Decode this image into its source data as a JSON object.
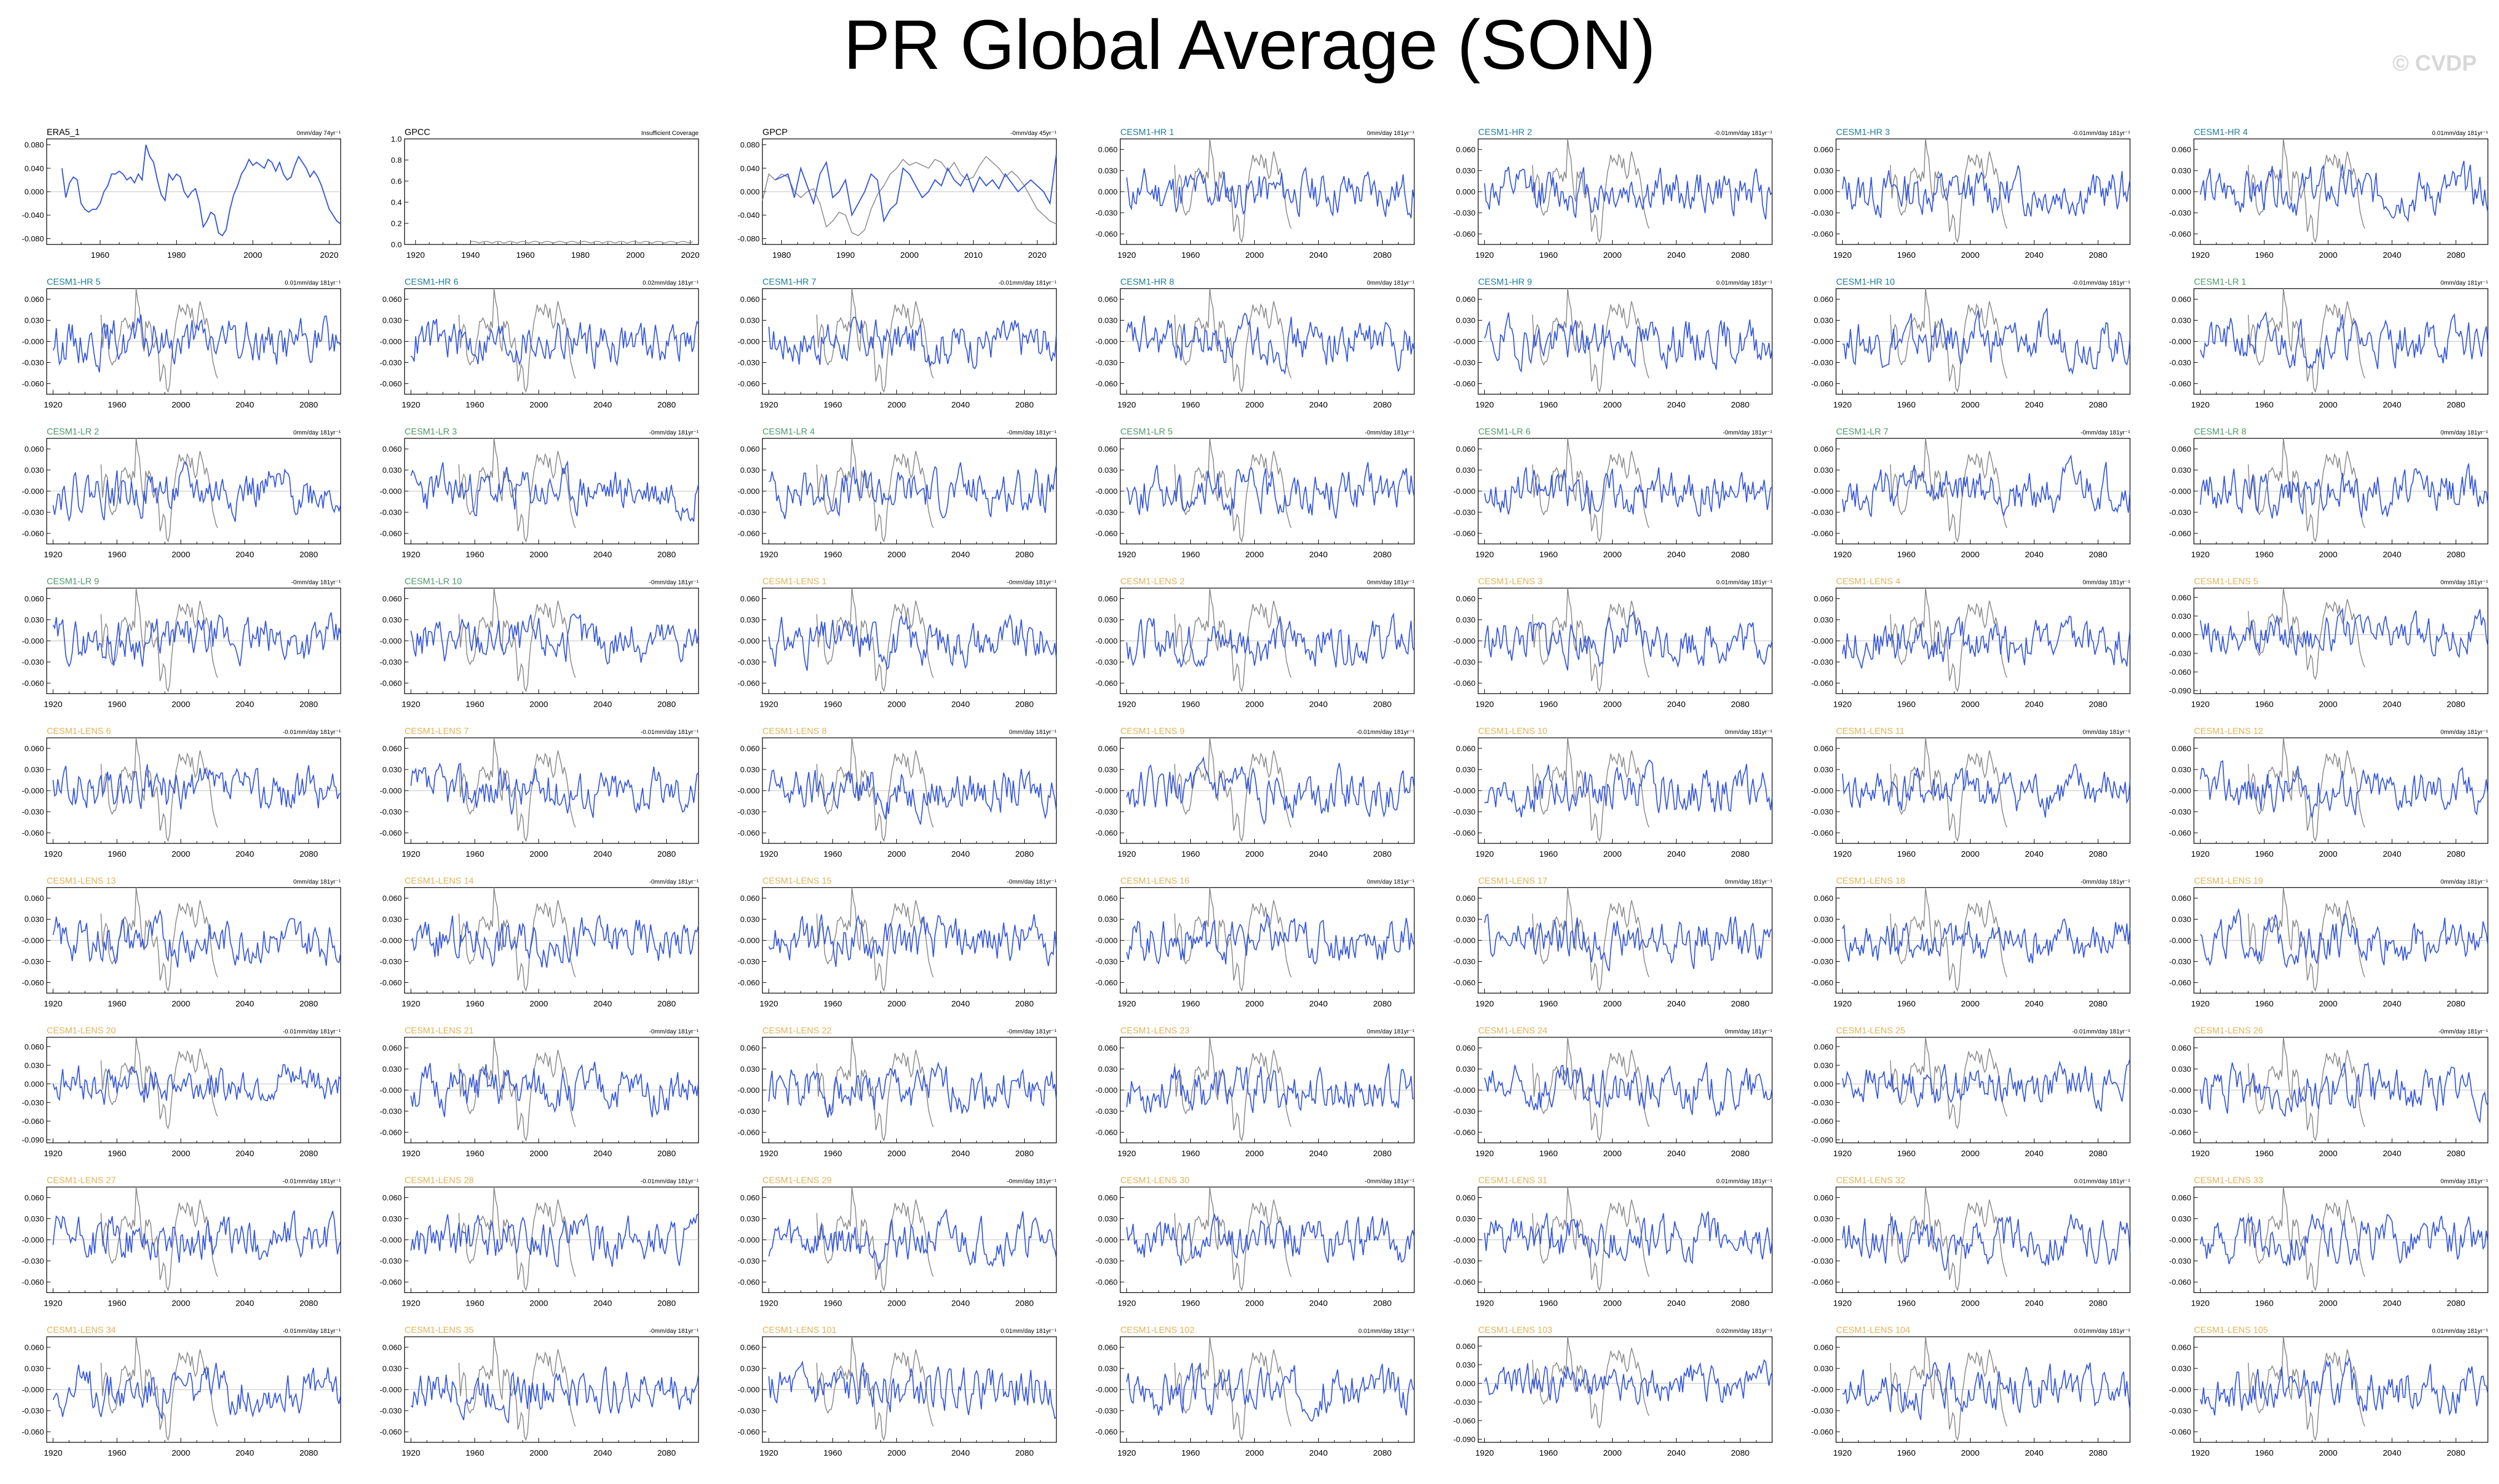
{
  "title": "PR Global Average (SON)",
  "copyright": "© CVDP",
  "colors": {
    "series_line": "#3355dd",
    "observation_overlay": "#8a8a8a",
    "zero_line": "#bdbdbd",
    "label_obs": "#000000",
    "label_cesm1_hr": "#1f7f9a",
    "label_cesm1_lr": "#4f9a6a",
    "label_cesm1_lens": "#e2b45a",
    "trend_text": "#000000"
  },
  "chart_data": [
    {
      "type": "line",
      "label": "ERA5_1",
      "label_group": "obs",
      "trend": "0mm/day 74yr⁻¹",
      "xlim": [
        1946,
        2023
      ],
      "ylim": [
        -0.09,
        0.09
      ],
      "yticks": [
        "0.080",
        "0.040",
        "0.000",
        "-0.040",
        "-0.080"
      ],
      "ytick_values": [
        0.08,
        0.04,
        0,
        -0.04,
        -0.08
      ],
      "xticks": [
        1960,
        1980,
        2000,
        2020
      ],
      "series": [
        {
          "name": "ERA5_1",
          "x_start": 1950,
          "x_end": 2023,
          "values": [
            0.04,
            -0.01,
            0.015,
            0.025,
            0.02,
            -0.02,
            -0.03,
            -0.035,
            -0.03,
            -0.03,
            -0.02,
            0.0,
            0.01,
            0.03,
            0.03,
            0.035,
            0.03,
            0.02,
            0.025,
            0.015,
            0.03,
            0.02,
            0.08,
            0.06,
            0.05,
            0.02,
            -0.005,
            -0.015,
            0.03,
            0.02,
            0.03,
            0.025,
            0.0,
            -0.01,
            0.0,
            0.005,
            -0.02,
            -0.06,
            -0.05,
            -0.035,
            -0.04,
            -0.07,
            -0.075,
            -0.065,
            -0.03,
            -0.005,
            0.01,
            0.03,
            0.04,
            0.055,
            0.045,
            0.05,
            0.045,
            0.04,
            0.055,
            0.05,
            0.035,
            0.05,
            0.03,
            0.02,
            0.025,
            0.045,
            0.06,
            0.05,
            0.04,
            0.025,
            0.035,
            0.025,
            0.01,
            -0.01,
            -0.03,
            -0.04,
            -0.05,
            -0.055
          ]
        }
      ]
    },
    {
      "type": "line",
      "label": "GPCC",
      "label_group": "obs",
      "trend": "Insufficient Coverage",
      "xlim": [
        1916,
        2023
      ],
      "ylim": [
        0,
        1.0
      ],
      "yticks": [
        "1.0",
        "0.8",
        "0.6",
        "0.4",
        "0.2",
        "0.0"
      ],
      "ytick_values": [
        1.0,
        0.8,
        0.6,
        0.4,
        0.2,
        0.0
      ],
      "xticks": [
        1920,
        1940,
        1960,
        1980,
        2000,
        2020
      ],
      "series": []
    },
    {
      "type": "line",
      "label": "GPCP",
      "label_group": "obs",
      "trend": "-0mm/day 45yr⁻¹",
      "xlim": [
        1977,
        2023
      ],
      "ylim": [
        -0.09,
        0.09
      ],
      "yticks": [
        "0.080",
        "0.040",
        "0.000",
        "-0.040",
        "-0.080"
      ],
      "ytick_values": [
        0.08,
        0.04,
        0,
        -0.04,
        -0.08
      ],
      "xticks": [
        1980,
        1990,
        2000,
        2010,
        2020
      ],
      "series": [
        {
          "name": "GPCP",
          "x_start": 1979,
          "x_end": 2023,
          "values": [
            0.02,
            0.025,
            0.03,
            -0.01,
            0.04,
            0.01,
            -0.02,
            0.03,
            0.05,
            -0.01,
            0.0,
            0.02,
            -0.04,
            -0.02,
            0.0,
            0.03,
            0.02,
            -0.05,
            -0.03,
            -0.02,
            0.04,
            0.03,
            0.01,
            -0.01,
            0.0,
            0.02,
            0.01,
            0.04,
            0.02,
            0.01,
            0.03,
            0.0,
            0.025,
            0.01,
            0.02,
            0.005,
            0.03,
            0.015,
            0.0,
            0.01,
            0.02,
            0.01,
            0.0,
            -0.02,
            0.065
          ]
        }
      ]
    },
    {
      "label": "CESM1-HR 1",
      "label_group": "hr",
      "trend": "0mm/day 181yr⁻¹",
      "seed": 11,
      "ymode": "b"
    },
    {
      "label": "CESM1-HR 2",
      "label_group": "hr",
      "trend": "-0.01mm/day 181yr⁻¹",
      "seed": 12,
      "ymode": "b"
    },
    {
      "label": "CESM1-HR 3",
      "label_group": "hr",
      "trend": "-0.01mm/day 181yr⁻¹",
      "seed": 13,
      "ymode": "b"
    },
    {
      "label": "CESM1-HR 4",
      "label_group": "hr",
      "trend": "0.01mm/day 181yr⁻¹",
      "seed": 14,
      "ymode": "b"
    },
    {
      "label": "CESM1-HR 5",
      "label_group": "hr",
      "trend": "0.01mm/day 181yr⁻¹",
      "seed": 15,
      "ymode": "a"
    },
    {
      "label": "CESM1-HR 6",
      "label_group": "hr",
      "trend": "0.02mm/day 181yr⁻¹",
      "seed": 16,
      "ymode": "a"
    },
    {
      "label": "CESM1-HR 7",
      "label_group": "hr",
      "trend": "-0.01mm/day 181yr⁻¹",
      "seed": 17,
      "ymode": "a"
    },
    {
      "label": "CESM1-HR 8",
      "label_group": "hr",
      "trend": "0mm/day 181yr⁻¹",
      "seed": 18,
      "ymode": "a"
    },
    {
      "label": "CESM1-HR 9",
      "label_group": "hr",
      "trend": "0.01mm/day 181yr⁻¹",
      "seed": 19,
      "ymode": "a"
    },
    {
      "label": "CESM1-HR 10",
      "label_group": "hr",
      "trend": "-0.01mm/day 181yr⁻¹",
      "seed": 20,
      "ymode": "a"
    },
    {
      "label": "CESM1-LR 1",
      "label_group": "lr",
      "trend": "0mm/day 181yr⁻¹",
      "seed": 21,
      "ymode": "a"
    },
    {
      "label": "CESM1-LR 2",
      "label_group": "lr",
      "trend": "0mm/day 181yr⁻¹",
      "seed": 22,
      "ymode": "a"
    },
    {
      "label": "CESM1-LR 3",
      "label_group": "lr",
      "trend": "-0mm/day 181yr⁻¹",
      "seed": 23,
      "ymode": "a"
    },
    {
      "label": "CESM1-LR 4",
      "label_group": "lr",
      "trend": "-0mm/day 181yr⁻¹",
      "seed": 24,
      "ymode": "a"
    },
    {
      "label": "CESM1-LR 5",
      "label_group": "lr",
      "trend": "-0mm/day 181yr⁻¹",
      "seed": 25,
      "ymode": "a"
    },
    {
      "label": "CESM1-LR 6",
      "label_group": "lr",
      "trend": "-0mm/day 181yr⁻¹",
      "seed": 26,
      "ymode": "a"
    },
    {
      "label": "CESM1-LR 7",
      "label_group": "lr",
      "trend": "-0mm/day 181yr⁻¹",
      "seed": 27,
      "ymode": "a"
    },
    {
      "label": "CESM1-LR 8",
      "label_group": "lr",
      "trend": "0mm/day 181yr⁻¹",
      "seed": 28,
      "ymode": "a"
    },
    {
      "label": "CESM1-LR 9",
      "label_group": "lr",
      "trend": "-0mm/day 181yr⁻¹",
      "seed": 29,
      "ymode": "a"
    },
    {
      "label": "CESM1-LR 10",
      "label_group": "lr",
      "trend": "-0mm/day 181yr⁻¹",
      "seed": 30,
      "ymode": "a"
    },
    {
      "label": "CESM1-LENS 1",
      "label_group": "lens",
      "trend": "-0mm/day 181yr⁻¹",
      "seed": 31,
      "ymode": "a"
    },
    {
      "label": "CESM1-LENS 2",
      "label_group": "lens",
      "trend": "0mm/day 181yr⁻¹",
      "seed": 32,
      "ymode": "a"
    },
    {
      "label": "CESM1-LENS 3",
      "label_group": "lens",
      "trend": "0.01mm/day 181yr⁻¹",
      "seed": 33,
      "ymode": "a"
    },
    {
      "label": "CESM1-LENS 4",
      "label_group": "lens",
      "trend": "0mm/day 181yr⁻¹",
      "seed": 34,
      "ymode": "a"
    },
    {
      "label": "CESM1-LENS 5",
      "label_group": "lens",
      "trend": "0mm/day 181yr⁻¹",
      "seed": 35,
      "ymode": "c"
    },
    {
      "label": "CESM1-LENS 6",
      "label_group": "lens",
      "trend": "-0.01mm/day 181yr⁻¹",
      "seed": 36,
      "ymode": "a"
    },
    {
      "label": "CESM1-LENS 7",
      "label_group": "lens",
      "trend": "-0.01mm/day 181yr⁻¹",
      "seed": 37,
      "ymode": "a"
    },
    {
      "label": "CESM1-LENS 8",
      "label_group": "lens",
      "trend": "0mm/day 181yr⁻¹",
      "seed": 38,
      "ymode": "a"
    },
    {
      "label": "CESM1-LENS 9",
      "label_group": "lens",
      "trend": "-0.01mm/day 181yr⁻¹",
      "seed": 39,
      "ymode": "a"
    },
    {
      "label": "CESM1-LENS 10",
      "label_group": "lens",
      "trend": "0mm/day 181yr⁻¹",
      "seed": 40,
      "ymode": "a"
    },
    {
      "label": "CESM1-LENS 11",
      "label_group": "lens",
      "trend": "0mm/day 181yr⁻¹",
      "seed": 41,
      "ymode": "a"
    },
    {
      "label": "CESM1-LENS 12",
      "label_group": "lens",
      "trend": "0mm/day 181yr⁻¹",
      "seed": 42,
      "ymode": "a"
    },
    {
      "label": "CESM1-LENS 13",
      "label_group": "lens",
      "trend": "0mm/day 181yr⁻¹",
      "seed": 43,
      "ymode": "a"
    },
    {
      "label": "CESM1-LENS 14",
      "label_group": "lens",
      "trend": "-0mm/day 181yr⁻¹",
      "seed": 44,
      "ymode": "a"
    },
    {
      "label": "CESM1-LENS 15",
      "label_group": "lens",
      "trend": "-0mm/day 181yr⁻¹",
      "seed": 45,
      "ymode": "a"
    },
    {
      "label": "CESM1-LENS 16",
      "label_group": "lens",
      "trend": "0mm/day 181yr⁻¹",
      "seed": 46,
      "ymode": "a"
    },
    {
      "label": "CESM1-LENS 17",
      "label_group": "lens",
      "trend": "0mm/day 181yr⁻¹",
      "seed": 47,
      "ymode": "a"
    },
    {
      "label": "CESM1-LENS 18",
      "label_group": "lens",
      "trend": "-0mm/day 181yr⁻¹",
      "seed": 48,
      "ymode": "a"
    },
    {
      "label": "CESM1-LENS 19",
      "label_group": "lens",
      "trend": "0mm/day 181yr⁻¹",
      "seed": 49,
      "ymode": "a"
    },
    {
      "label": "CESM1-LENS 20",
      "label_group": "lens",
      "trend": "-0.01mm/day 181yr⁻¹",
      "seed": 50,
      "ymode": "c"
    },
    {
      "label": "CESM1-LENS 21",
      "label_group": "lens",
      "trend": "-0mm/day 181yr⁻¹",
      "seed": 51,
      "ymode": "a"
    },
    {
      "label": "CESM1-LENS 22",
      "label_group": "lens",
      "trend": "-0mm/day 181yr⁻¹",
      "seed": 52,
      "ymode": "a"
    },
    {
      "label": "CESM1-LENS 23",
      "label_group": "lens",
      "trend": "0mm/day 181yr⁻¹",
      "seed": 53,
      "ymode": "a"
    },
    {
      "label": "CESM1-LENS 24",
      "label_group": "lens",
      "trend": "0mm/day 181yr⁻¹",
      "seed": 54,
      "ymode": "a"
    },
    {
      "label": "CESM1-LENS 25",
      "label_group": "lens",
      "trend": "-0.01mm/day 181yr⁻¹",
      "seed": 55,
      "ymode": "c"
    },
    {
      "label": "CESM1-LENS 26",
      "label_group": "lens",
      "trend": "-0mm/day 181yr⁻¹",
      "seed": 56,
      "ymode": "a"
    },
    {
      "label": "CESM1-LENS 27",
      "label_group": "lens",
      "trend": "-0.01mm/day 181yr⁻¹",
      "seed": 57,
      "ymode": "a"
    },
    {
      "label": "CESM1-LENS 28",
      "label_group": "lens",
      "trend": "-0.01mm/day 181yr⁻¹",
      "seed": 58,
      "ymode": "a"
    },
    {
      "label": "CESM1-LENS 29",
      "label_group": "lens",
      "trend": "-0mm/day 181yr⁻¹",
      "seed": 59,
      "ymode": "a"
    },
    {
      "label": "CESM1-LENS 30",
      "label_group": "lens",
      "trend": "-0mm/day 181yr⁻¹",
      "seed": 60,
      "ymode": "a"
    },
    {
      "label": "CESM1-LENS 31",
      "label_group": "lens",
      "trend": "0.01mm/day 181yr⁻¹",
      "seed": 61,
      "ymode": "a"
    },
    {
      "label": "CESM1-LENS 32",
      "label_group": "lens",
      "trend": "0.01mm/day 181yr⁻¹",
      "seed": 62,
      "ymode": "a"
    },
    {
      "label": "CESM1-LENS 33",
      "label_group": "lens",
      "trend": "0mm/day 181yr⁻¹",
      "seed": 63,
      "ymode": "a"
    },
    {
      "label": "CESM1-LENS 34",
      "label_group": "lens",
      "trend": "-0.01mm/day 181yr⁻¹",
      "seed": 64,
      "ymode": "a"
    },
    {
      "label": "CESM1-LENS 35",
      "label_group": "lens",
      "trend": "-0mm/day 181yr⁻¹",
      "seed": 65,
      "ymode": "a"
    },
    {
      "label": "CESM1-LENS 101",
      "label_group": "lens",
      "trend": "0.01mm/day 181yr⁻¹",
      "seed": 66,
      "ymode": "a"
    },
    {
      "label": "CESM1-LENS 102",
      "label_group": "lens",
      "trend": "0.01mm/day 181yr⁻¹",
      "seed": 67,
      "ymode": "a"
    },
    {
      "label": "CESM1-LENS 103",
      "label_group": "lens",
      "trend": "0.02mm/day 181yr⁻¹",
      "seed": 68,
      "ymode": "c"
    },
    {
      "label": "CESM1-LENS 104",
      "label_group": "lens",
      "trend": "0.01mm/day 181yr⁻¹",
      "seed": 69,
      "ymode": "a"
    },
    {
      "label": "CESM1-LENS 105",
      "label_group": "lens",
      "trend": "0.01mm/day 181yr⁻¹",
      "seed": 70,
      "ymode": "a"
    }
  ],
  "model_axes": {
    "xlim": [
      1916,
      2100
    ],
    "xticks": [
      1920,
      1960,
      2000,
      2040,
      2080
    ],
    "ylim_a": [
      -0.075,
      0.075
    ],
    "yticks_a": [
      "0.060",
      "0.030",
      "-0.000",
      "-0.030",
      "-0.060"
    ],
    "ytick_values_a": [
      0.06,
      0.03,
      0.0,
      -0.03,
      -0.06
    ],
    "ylim_b": [
      -0.075,
      0.075
    ],
    "yticks_b": [
      "0.060",
      "0.030",
      "0.000",
      "-0.030",
      "-0.060"
    ],
    "ytick_values_b": [
      0.06,
      0.03,
      0.0,
      -0.03,
      -0.06
    ],
    "ylim_c": [
      -0.095,
      0.075
    ],
    "yticks_c": [
      "0.060",
      "0.030",
      "0.000",
      "-0.030",
      "-0.060",
      "-0.090"
    ],
    "ytick_values_c": [
      0.06,
      0.03,
      0.0,
      -0.03,
      -0.06,
      -0.09
    ],
    "model_years": [
      1920,
      2100
    ],
    "overlay_years": [
      1950,
      2023
    ]
  }
}
